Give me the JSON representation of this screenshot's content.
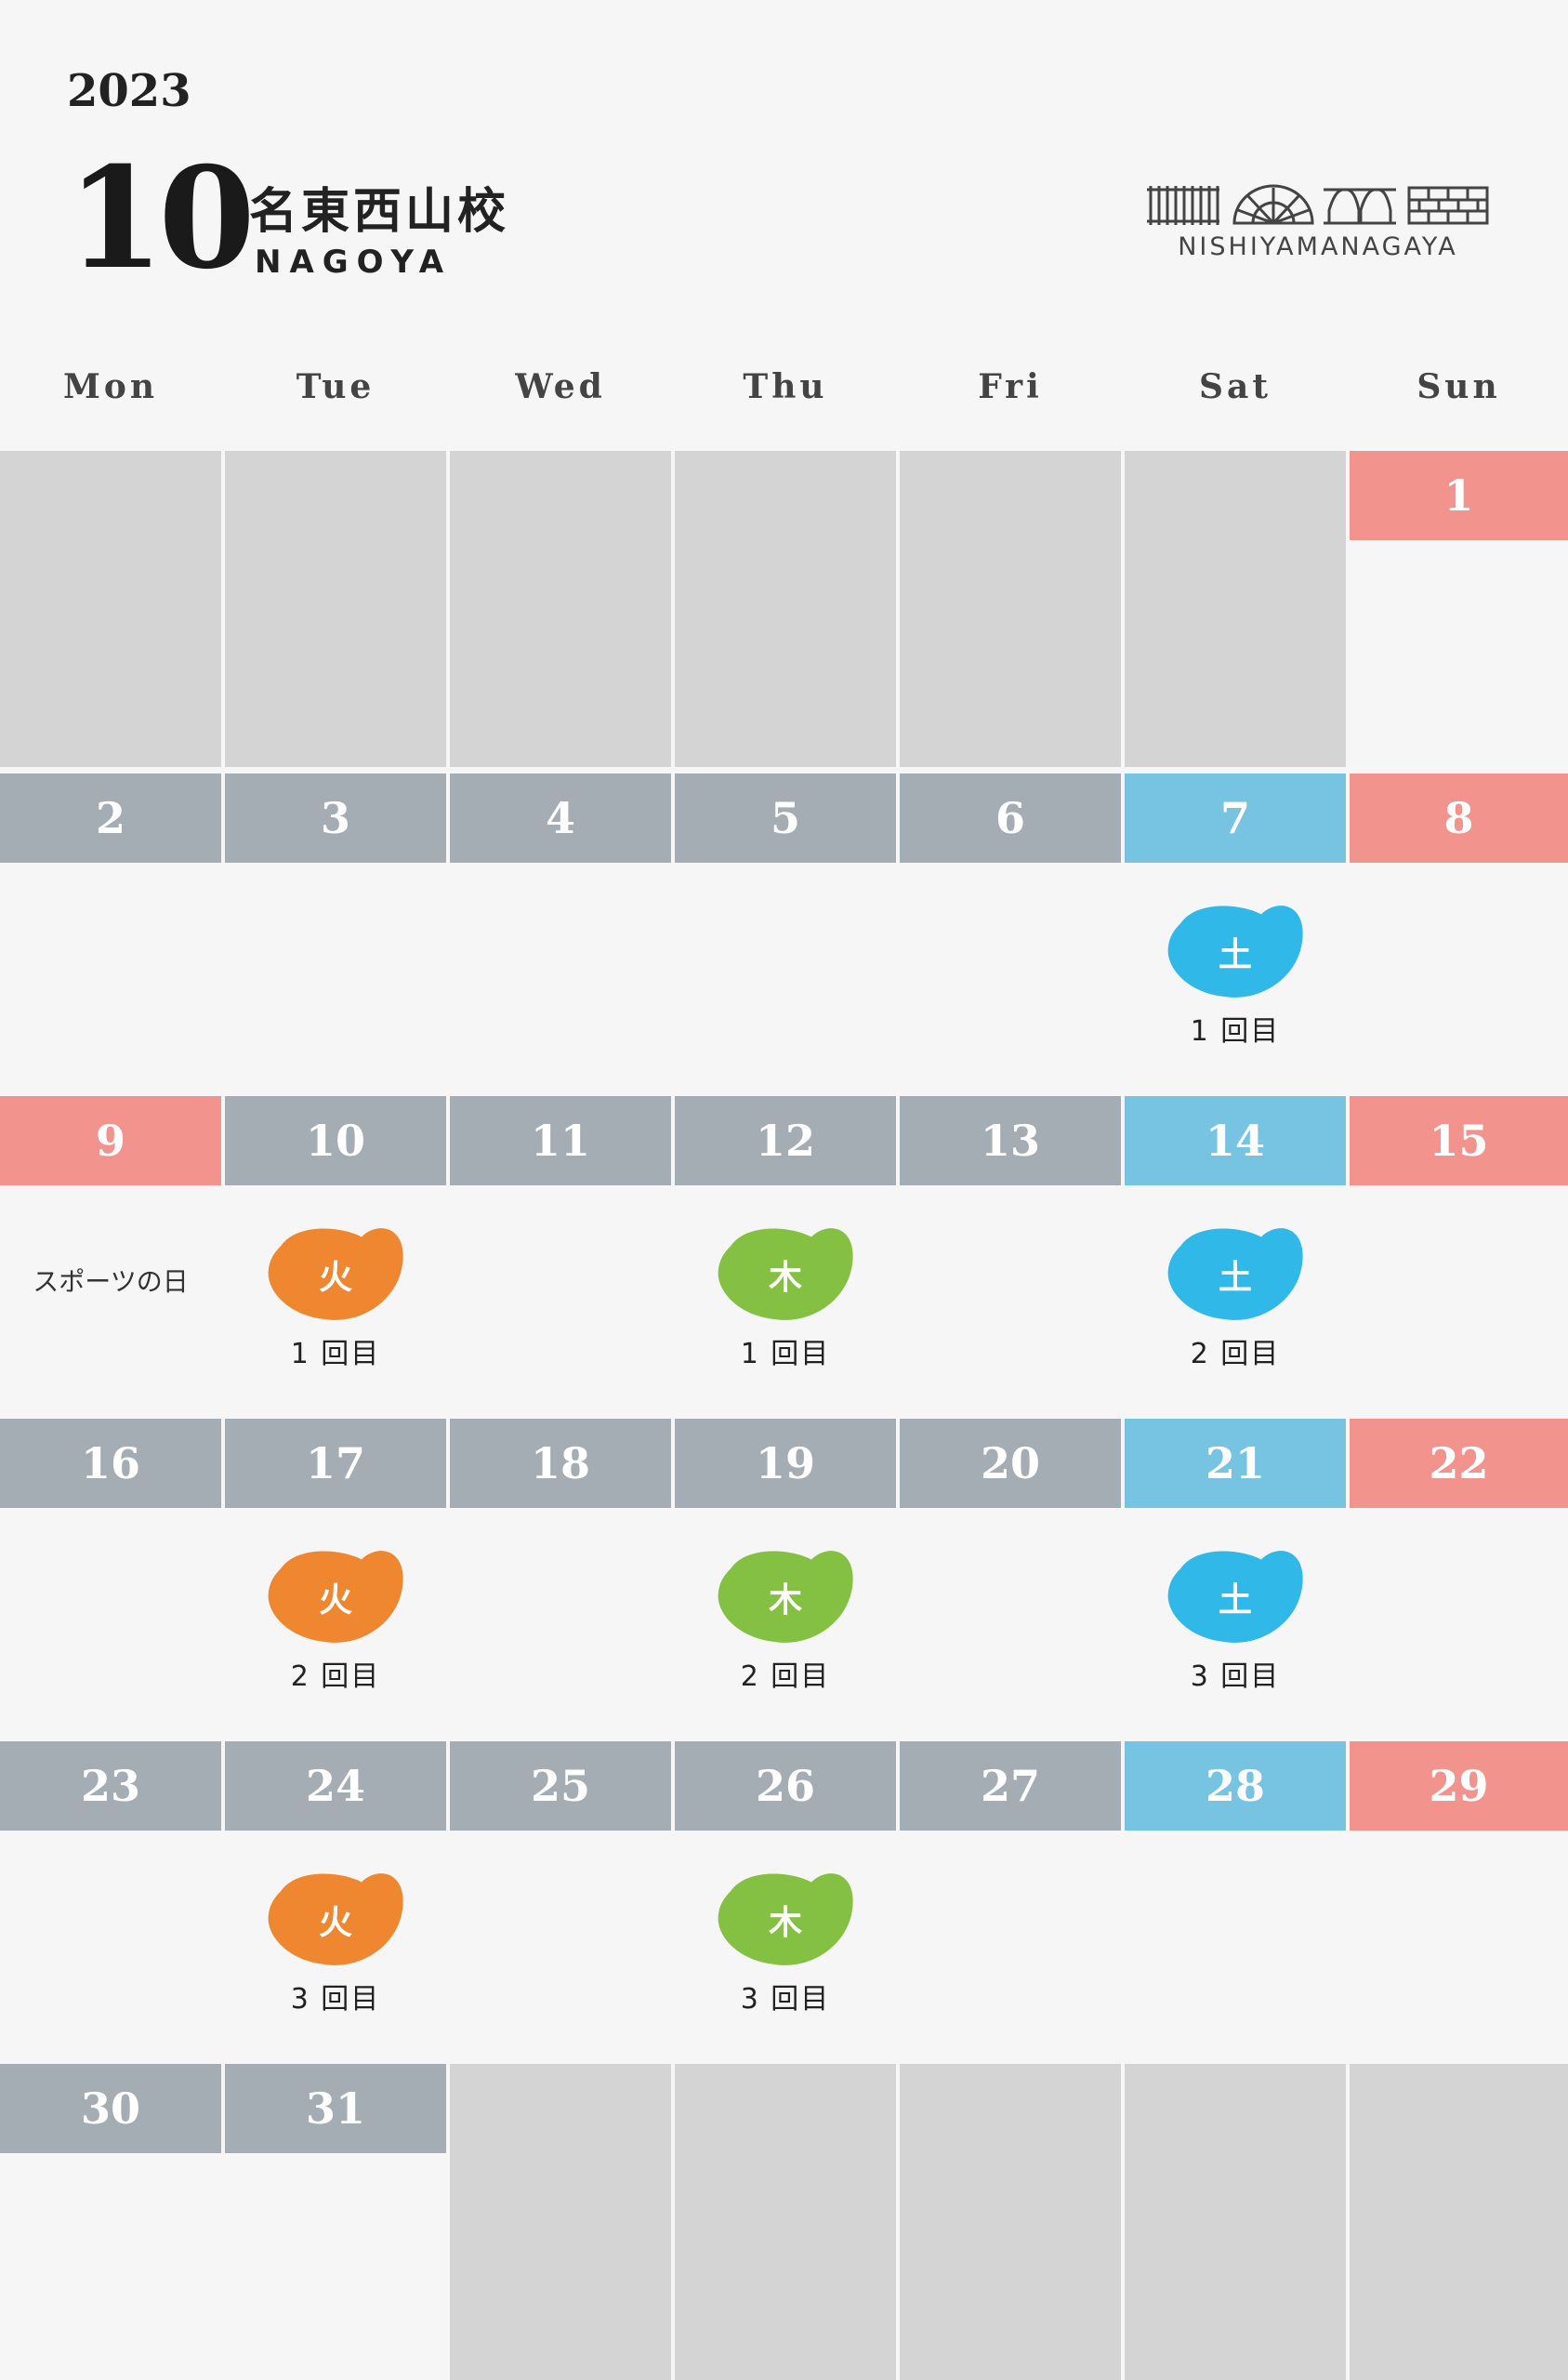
{
  "header": {
    "year": "2023",
    "month": "10",
    "school_name": "名東西山校",
    "school_sub": "NAGOYA",
    "logo_text": "NISHIYAMANAGAYA"
  },
  "days_of_week": [
    "Mon",
    "Tue",
    "Wed",
    "Thu",
    "Fri",
    "Sat",
    "Sun"
  ],
  "colors": {
    "weekday": "#a3adb3",
    "saturday": "#77c3e2",
    "sunday_holiday": "#f2948d",
    "empty_cell": "#d4d4d4",
    "tuesday_class": "#ef8730",
    "thursday_class": "#84c142",
    "saturday_class": "#2fb8e8"
  },
  "weeks": [
    [
      null,
      null,
      null,
      null,
      null,
      null,
      {
        "day": "1",
        "type": "sunday_holiday"
      }
    ],
    [
      {
        "day": "2",
        "type": "weekday"
      },
      {
        "day": "3",
        "type": "weekday"
      },
      {
        "day": "4",
        "type": "weekday"
      },
      {
        "day": "5",
        "type": "weekday"
      },
      {
        "day": "6",
        "type": "weekday"
      },
      {
        "day": "7",
        "type": "saturday",
        "event": {
          "label": "土",
          "kind": "saturday_class",
          "session": "1 回目"
        }
      },
      {
        "day": "8",
        "type": "sunday_holiday"
      }
    ],
    [
      {
        "day": "9",
        "type": "sunday_holiday",
        "note": "スポーツの日"
      },
      {
        "day": "10",
        "type": "weekday",
        "event": {
          "label": "火",
          "kind": "tuesday_class",
          "session": "1 回目"
        }
      },
      {
        "day": "11",
        "type": "weekday"
      },
      {
        "day": "12",
        "type": "weekday",
        "event": {
          "label": "木",
          "kind": "thursday_class",
          "session": "1 回目"
        }
      },
      {
        "day": "13",
        "type": "weekday"
      },
      {
        "day": "14",
        "type": "saturday",
        "event": {
          "label": "土",
          "kind": "saturday_class",
          "session": "2 回目"
        }
      },
      {
        "day": "15",
        "type": "sunday_holiday"
      }
    ],
    [
      {
        "day": "16",
        "type": "weekday"
      },
      {
        "day": "17",
        "type": "weekday",
        "event": {
          "label": "火",
          "kind": "tuesday_class",
          "session": "2 回目"
        }
      },
      {
        "day": "18",
        "type": "weekday"
      },
      {
        "day": "19",
        "type": "weekday",
        "event": {
          "label": "木",
          "kind": "thursday_class",
          "session": "2 回目"
        }
      },
      {
        "day": "20",
        "type": "weekday"
      },
      {
        "day": "21",
        "type": "saturday",
        "event": {
          "label": "土",
          "kind": "saturday_class",
          "session": "3 回目"
        }
      },
      {
        "day": "22",
        "type": "sunday_holiday"
      }
    ],
    [
      {
        "day": "23",
        "type": "weekday"
      },
      {
        "day": "24",
        "type": "weekday",
        "event": {
          "label": "火",
          "kind": "tuesday_class",
          "session": "3 回目"
        }
      },
      {
        "day": "25",
        "type": "weekday"
      },
      {
        "day": "26",
        "type": "weekday",
        "event": {
          "label": "木",
          "kind": "thursday_class",
          "session": "3 回目"
        }
      },
      {
        "day": "27",
        "type": "weekday"
      },
      {
        "day": "28",
        "type": "saturday"
      },
      {
        "day": "29",
        "type": "sunday_holiday"
      }
    ],
    [
      {
        "day": "30",
        "type": "weekday"
      },
      {
        "day": "31",
        "type": "weekday"
      },
      null,
      null,
      null,
      null,
      null
    ]
  ]
}
